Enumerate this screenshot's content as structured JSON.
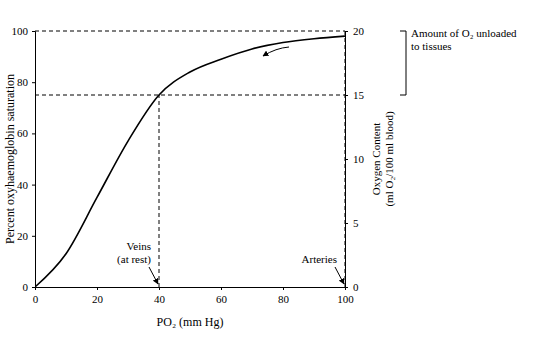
{
  "chart_data": {
    "type": "line",
    "x_label": "PO₂ (mm Hg)",
    "y_label": "Percent oxyhaemoglobin saturation",
    "y2_label": [
      "Oxygen Content",
      "(ml O₂/100 ml blood)"
    ],
    "x": [
      0,
      10,
      20,
      30,
      40,
      50,
      60,
      70,
      80,
      90,
      100
    ],
    "values": [
      0,
      13,
      35,
      57,
      75,
      84,
      89,
      93,
      95.5,
      97,
      98
    ],
    "color": "#000000",
    "line_style": "solid",
    "xlim": [
      0,
      100
    ],
    "xticks": [
      0,
      20,
      40,
      60,
      80,
      100
    ],
    "ylim": [
      0,
      100
    ],
    "yticks": [
      0,
      20,
      40,
      60,
      80,
      100
    ],
    "y2lim": [
      0,
      20
    ],
    "y2ticks": [
      0,
      5,
      10,
      15,
      20
    ],
    "annotations": [
      {
        "text": [
          "Veins",
          "(at rest)"
        ],
        "x": 40,
        "y": 75
      },
      {
        "text": [
          "Arteries"
        ],
        "x": 100,
        "y": 100
      }
    ],
    "bracket": {
      "text": [
        "Amount of O₂ unloaded",
        "to tissues"
      ],
      "from": 75,
      "to": 100
    }
  }
}
